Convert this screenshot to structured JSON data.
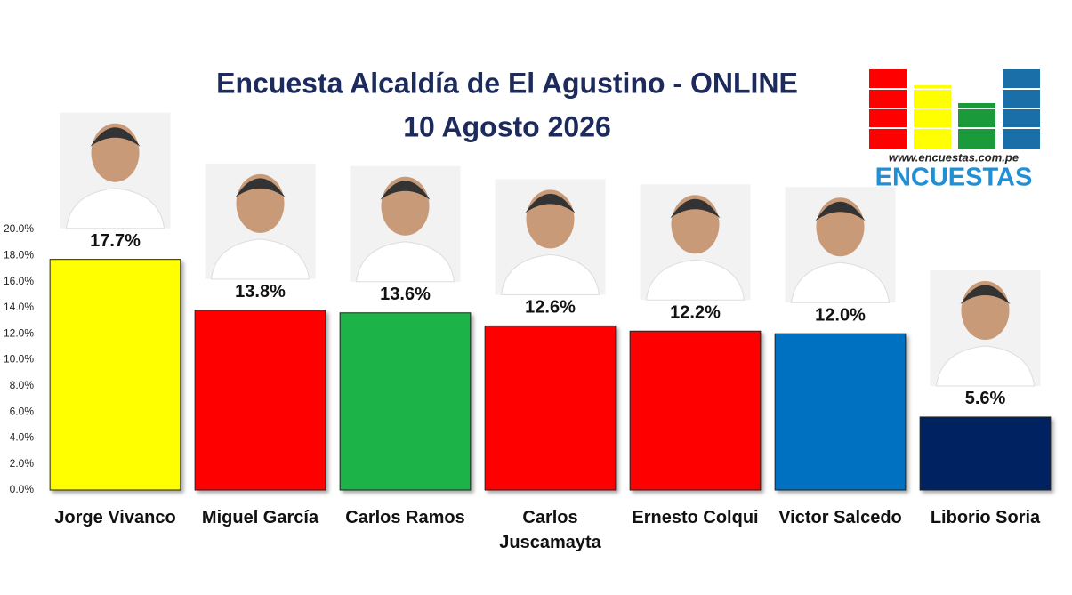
{
  "chart_data": {
    "type": "bar",
    "title": "Encuesta Alcaldía de El Agustino -  ONLINE",
    "subtitle": "10 Agosto 2026",
    "categories": [
      "Jorge Vivanco",
      "Miguel García",
      "Carlos Ramos",
      "Carlos Juscamayta",
      "Ernesto Colqui",
      "Victor Salcedo",
      "Liborio Soria"
    ],
    "values": [
      17.7,
      13.8,
      13.6,
      12.6,
      12.2,
      12.0,
      5.6
    ],
    "value_labels": [
      "17.7%",
      "13.8%",
      "13.6%",
      "12.6%",
      "12.2%",
      "12.0%",
      "5.6%"
    ],
    "colors": [
      "#ffff00",
      "#ff0000",
      "#1fb34a",
      "#ff0000",
      "#ff0000",
      "#0070c0",
      "#002060"
    ],
    "ylim": [
      0,
      20
    ],
    "yticks": [
      {
        "value": 0,
        "label": "0.0%"
      },
      {
        "value": 2,
        "label": "2.0%"
      },
      {
        "value": 4,
        "label": "4.0%"
      },
      {
        "value": 6,
        "label": "6.0%"
      },
      {
        "value": 8,
        "label": "8.0%"
      },
      {
        "value": 10,
        "label": "10.0%"
      },
      {
        "value": 12,
        "label": "12.0%"
      },
      {
        "value": 14,
        "label": "14.0%"
      },
      {
        "value": 16,
        "label": "16.0%"
      },
      {
        "value": 18,
        "label": "18.0%"
      },
      {
        "value": 20,
        "label": "20.0%"
      }
    ],
    "grid": false
  },
  "logo": {
    "url": "www.encuestas.com.pe",
    "name": "ENCUESTAS"
  }
}
